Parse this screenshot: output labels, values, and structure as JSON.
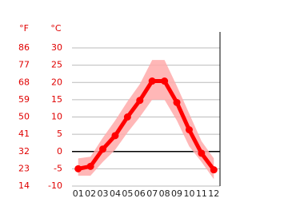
{
  "chart_data": {
    "type": "line",
    "y_unit_label": "°C",
    "y2_unit_label": "°F",
    "categories": [
      "01",
      "02",
      "03",
      "04",
      "05",
      "06",
      "07",
      "08",
      "09",
      "10",
      "11",
      "12"
    ],
    "values": [
      -5,
      -4.3,
      0.7,
      4.6,
      10,
      14.8,
      20.4,
      20.4,
      14.2,
      6.3,
      -0.5,
      -5.3
    ],
    "max": [
      -2,
      -1.5,
      4,
      9,
      14.5,
      19.5,
      26.5,
      26.5,
      19,
      11,
      3,
      -2
    ],
    "min": [
      -7,
      -7,
      -3,
      0.5,
      5.5,
      10,
      15,
      15,
      9,
      1.5,
      -3,
      -8
    ],
    "color": "#ff0000",
    "range_color": "#ffaaaa",
    "ylim": [
      -10,
      30
    ],
    "yticks": [
      -10,
      -5,
      0,
      5,
      10,
      15,
      20,
      25,
      30
    ],
    "y2lim": [
      14,
      86
    ],
    "y2ticks": [
      14,
      23,
      32,
      41,
      50,
      59,
      68,
      77,
      86
    ],
    "grid": true
  }
}
